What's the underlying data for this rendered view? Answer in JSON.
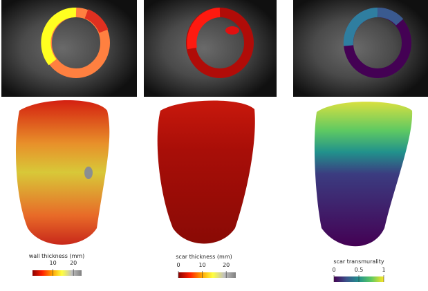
{
  "panels": [
    {
      "colorbar": {
        "label": "wall thickness (mm)",
        "lim": [
          0,
          24
        ],
        "ticks": [
          10,
          20
        ],
        "colors": [
          "#8b0000",
          "#ff2000",
          "#ffa000",
          "#ffff40",
          "#c0c0c0",
          "#808080"
        ]
      }
    },
    {
      "colorbar": {
        "label": "scar thickness (mm)",
        "lim": [
          0,
          24
        ],
        "ticks": [
          0,
          10,
          20
        ],
        "colors": [
          "#8b0000",
          "#ff2000",
          "#ffa000",
          "#ffff40",
          "#c0c0c0",
          "#808080"
        ]
      }
    },
    {
      "colorbar": {
        "label": "scar transmurality",
        "lim": [
          0,
          1
        ],
        "ticks": [
          0,
          0.5,
          1
        ],
        "colors": [
          "#440154",
          "#3b528b",
          "#21918c",
          "#5ec962",
          "#fde725"
        ]
      }
    }
  ]
}
